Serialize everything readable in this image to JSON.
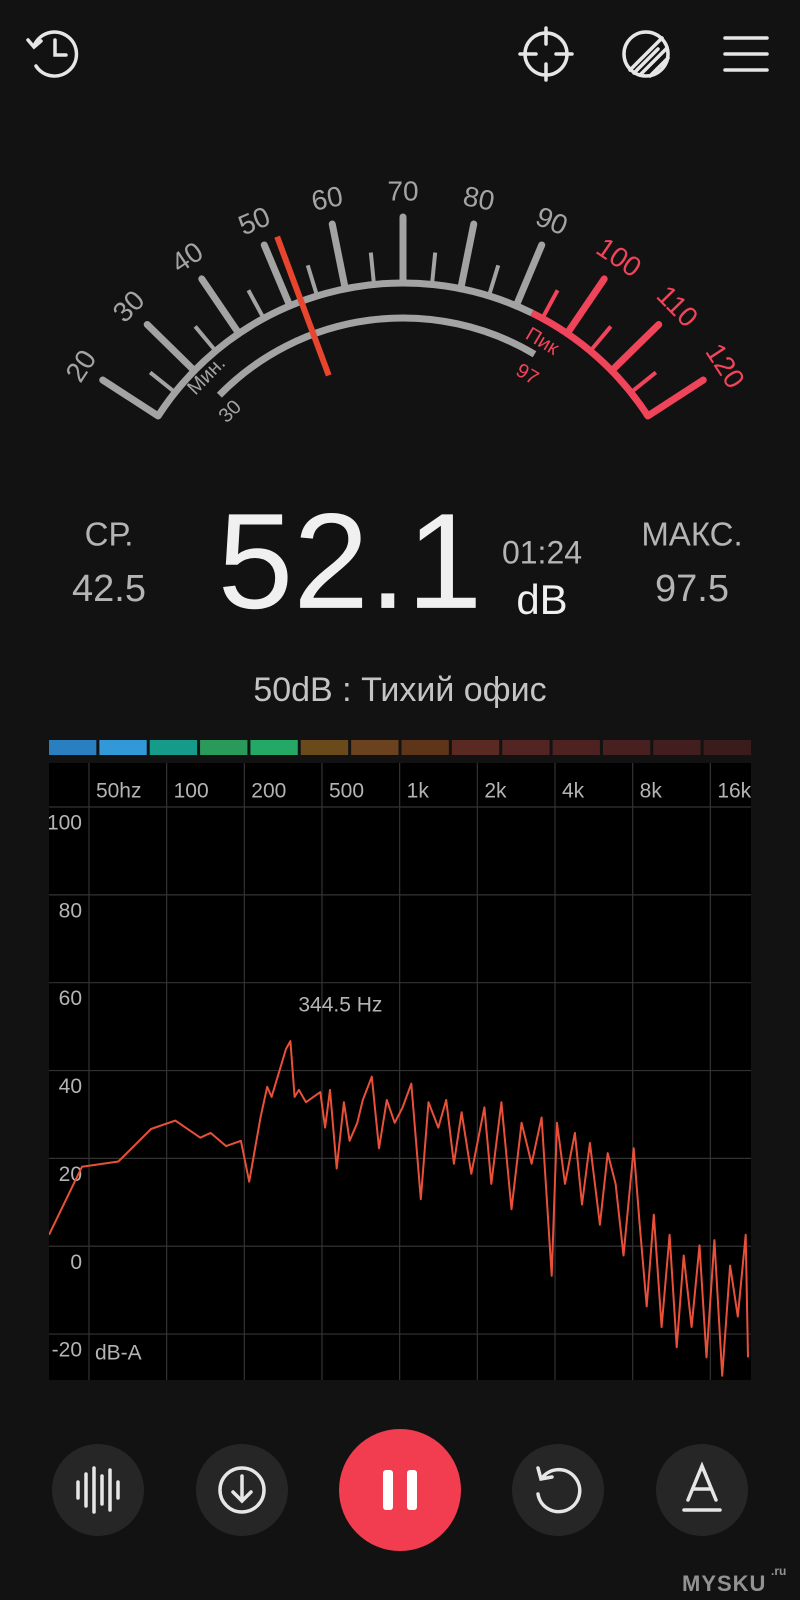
{
  "gauge": {
    "scale_labels": [
      20,
      30,
      40,
      50,
      60,
      70,
      80,
      90,
      100,
      110,
      120
    ],
    "zones": [
      {
        "from": 20,
        "to": 93,
        "color": "#a3a3a3"
      },
      {
        "from": 93,
        "to": 120,
        "color": "#f0445a"
      }
    ],
    "min_label": "Мин.",
    "min": 30,
    "peak_label": "Пик",
    "peak": 97,
    "needle_color": "#e8452e"
  },
  "readings": {
    "avg_label": "СР.",
    "avg": 42.5,
    "current": 52.1,
    "time": "01:24",
    "unit": "dB",
    "max_label": "МАКС.",
    "max": 97.5
  },
  "description": "50dB : Тихий офис",
  "level_bar": [
    "#2a7fc0",
    "#3398d8",
    "#169a8a",
    "#2a9a5a",
    "#23a865",
    "#6a4a1a",
    "#6a4220",
    "#5e3518",
    "#5a2a22",
    "#532522",
    "#4e2220",
    "#482020",
    "#421e1e",
    "#3a1c1c"
  ],
  "spectrum": {
    "type": "line",
    "xticks": [
      {
        "value": 50,
        "label": "50hz"
      },
      100,
      200,
      500,
      {
        "value": 1000,
        "label": "1k"
      },
      {
        "value": 2000,
        "label": "2k"
      },
      {
        "value": 4000,
        "label": "4k"
      },
      {
        "value": 8000,
        "label": "8k"
      },
      {
        "value": 16000,
        "label": "16k"
      }
    ],
    "xlim": [
      35,
      23000
    ],
    "yticks": [
      100,
      80,
      60,
      40,
      20,
      0,
      -20
    ],
    "ylim": [
      -30,
      100
    ],
    "y_unit": "dB-A",
    "peak_label": "344.5 Hz",
    "grid": true,
    "series": [
      {
        "color": "#e8503a",
        "x": [
          35,
          47,
          65,
          87,
          108,
          135,
          148,
          170,
          194,
          212,
          242,
          262,
          276,
          327,
          344.5,
          362,
          381,
          414,
          490,
          514,
          537,
          570,
          608,
          640,
          685,
          720,
          780,
          832,
          892,
          957,
          1027,
          1110,
          1208,
          1294,
          1412,
          1515,
          1623,
          1738,
          1896,
          2131,
          2266,
          2480,
          2713,
          2968,
          3246,
          3550,
          3883,
          4073,
          4373,
          4777,
          5090,
          5460,
          5970,
          6405,
          6870,
          7370,
          8073,
          8520,
          9070,
          9660,
          10360,
          11120,
          11850,
          12620,
          13540,
          14520,
          15460,
          16590,
          17790,
          19080,
          20450,
          21930,
          22400
        ],
        "values": [
          2.6,
          18.1,
          19.3,
          26.7,
          28.6,
          24.7,
          25.8,
          22.8,
          24.0,
          14.7,
          29.3,
          36.3,
          34.0,
          44.9,
          46.7,
          34.0,
          35.6,
          32.8,
          35.1,
          27.0,
          35.6,
          17.7,
          32.8,
          24.0,
          28.1,
          33.3,
          38.6,
          22.3,
          33.3,
          28.1,
          31.6,
          37.0,
          10.7,
          32.8,
          27.0,
          33.3,
          18.8,
          30.5,
          16.5,
          31.6,
          14.2,
          32.8,
          8.4,
          28.1,
          18.8,
          29.3,
          -6.7,
          28.1,
          14.2,
          25.8,
          9.5,
          23.5,
          4.9,
          21.2,
          14.2,
          -2.1,
          22.3,
          4.9,
          -13.7,
          7.2,
          -18.4,
          2.6,
          -23.0,
          -2.1,
          -18.4,
          0.2,
          -25.3,
          1.4,
          -29.5,
          -4.4,
          -16.0,
          2.6,
          -25.3
        ]
      }
    ]
  },
  "watermark": {
    "name": "MYSKU",
    "suffix": ".ru"
  }
}
